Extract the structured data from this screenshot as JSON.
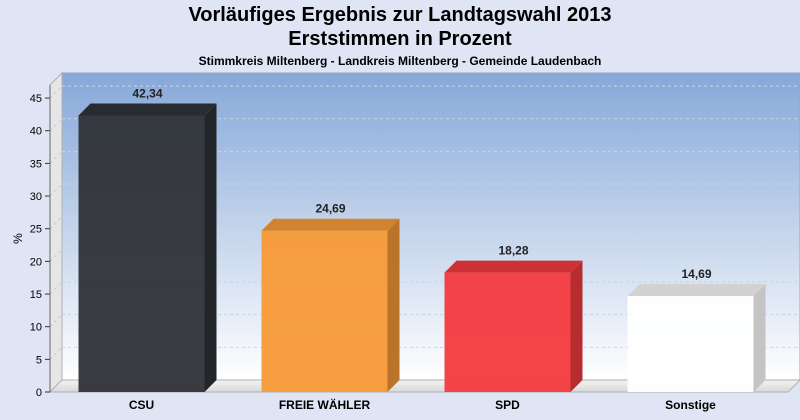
{
  "header": {
    "title": "Vorläufiges Ergebnis zur Landtagswahl 2013",
    "subtitle": "Erststimmen in Prozent",
    "caption": "Stimmkreis Miltenberg - Landkreis Miltenberg - Gemeinde Laudenbach"
  },
  "chart_data": {
    "type": "bar",
    "title": "Vorläufiges Ergebnis zur Landtagswahl 2013",
    "subtitle": "Erststimmen in Prozent",
    "xlabel": "",
    "ylabel": "%",
    "ylim": [
      0,
      47
    ],
    "yticks": [
      0,
      5,
      10,
      15,
      20,
      25,
      30,
      35,
      40,
      45
    ],
    "grid": true,
    "categories": [
      "CSU",
      "FREIE WÄHLER",
      "SPD",
      "Sonstige"
    ],
    "values": [
      42.34,
      24.69,
      18.28,
      14.69
    ],
    "value_labels": [
      "42,34",
      "24,69",
      "18,28",
      "14,69"
    ],
    "colors": [
      "#2f3237",
      "#f79a36",
      "#f23a3e",
      "#ffffff"
    ]
  }
}
